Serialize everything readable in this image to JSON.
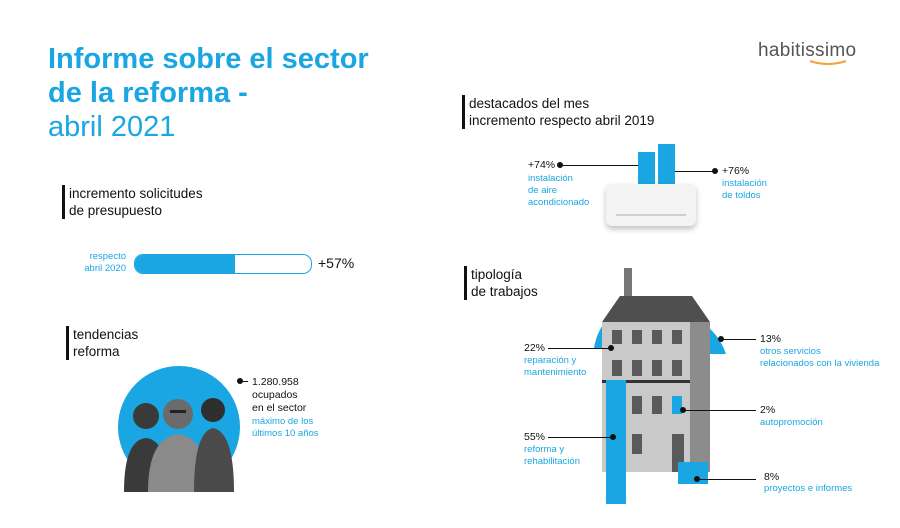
{
  "logo": {
    "text": "habitissimo"
  },
  "title": {
    "line1": "Informe sobre el sector",
    "line2": "de la reforma -",
    "line3": "abril 2021"
  },
  "solicitudes": {
    "heading_line1": "incremento solicitudes",
    "heading_line2": "de presupuesto",
    "label_line1": "respecto",
    "label_line2": "abril 2020",
    "value": "+57%",
    "progress_fraction": 0.57
  },
  "tendencias": {
    "heading_line1": "tendencias",
    "heading_line2": "reforma",
    "value_line1": "1.280.958",
    "value_line2": "ocupados",
    "value_line3": "en el sector",
    "note_line1": "máximo de los",
    "note_line2": "últimos 10 años"
  },
  "destacados": {
    "heading_line1": "destacados del mes",
    "heading_line2": "incremento respecto abril 2019",
    "left": {
      "value": "+74%",
      "l1": "instalación",
      "l2": "de aire",
      "l3": "acondicionado"
    },
    "right": {
      "value": "+76%",
      "l1": "instalación",
      "l2": "de toldos"
    }
  },
  "tipologia": {
    "heading_line1": "tipología",
    "heading_line2": "de trabajos",
    "items": [
      {
        "value": "22%",
        "l1": "reparación y",
        "l2": "mantenimiento"
      },
      {
        "value": "13%",
        "l1": "otros servicios",
        "l2": "relacionados con la vivienda"
      },
      {
        "value": "2%",
        "l1": "autopromoción",
        "l2": ""
      },
      {
        "value": "55%",
        "l1": "reforma y",
        "l2": "rehabilitación"
      },
      {
        "value": "8%",
        "l1": "proyectos e informes",
        "l2": ""
      }
    ]
  },
  "colors": {
    "accent": "#19a6e2",
    "text": "#111111",
    "logo_dot": "#f2a33a"
  }
}
